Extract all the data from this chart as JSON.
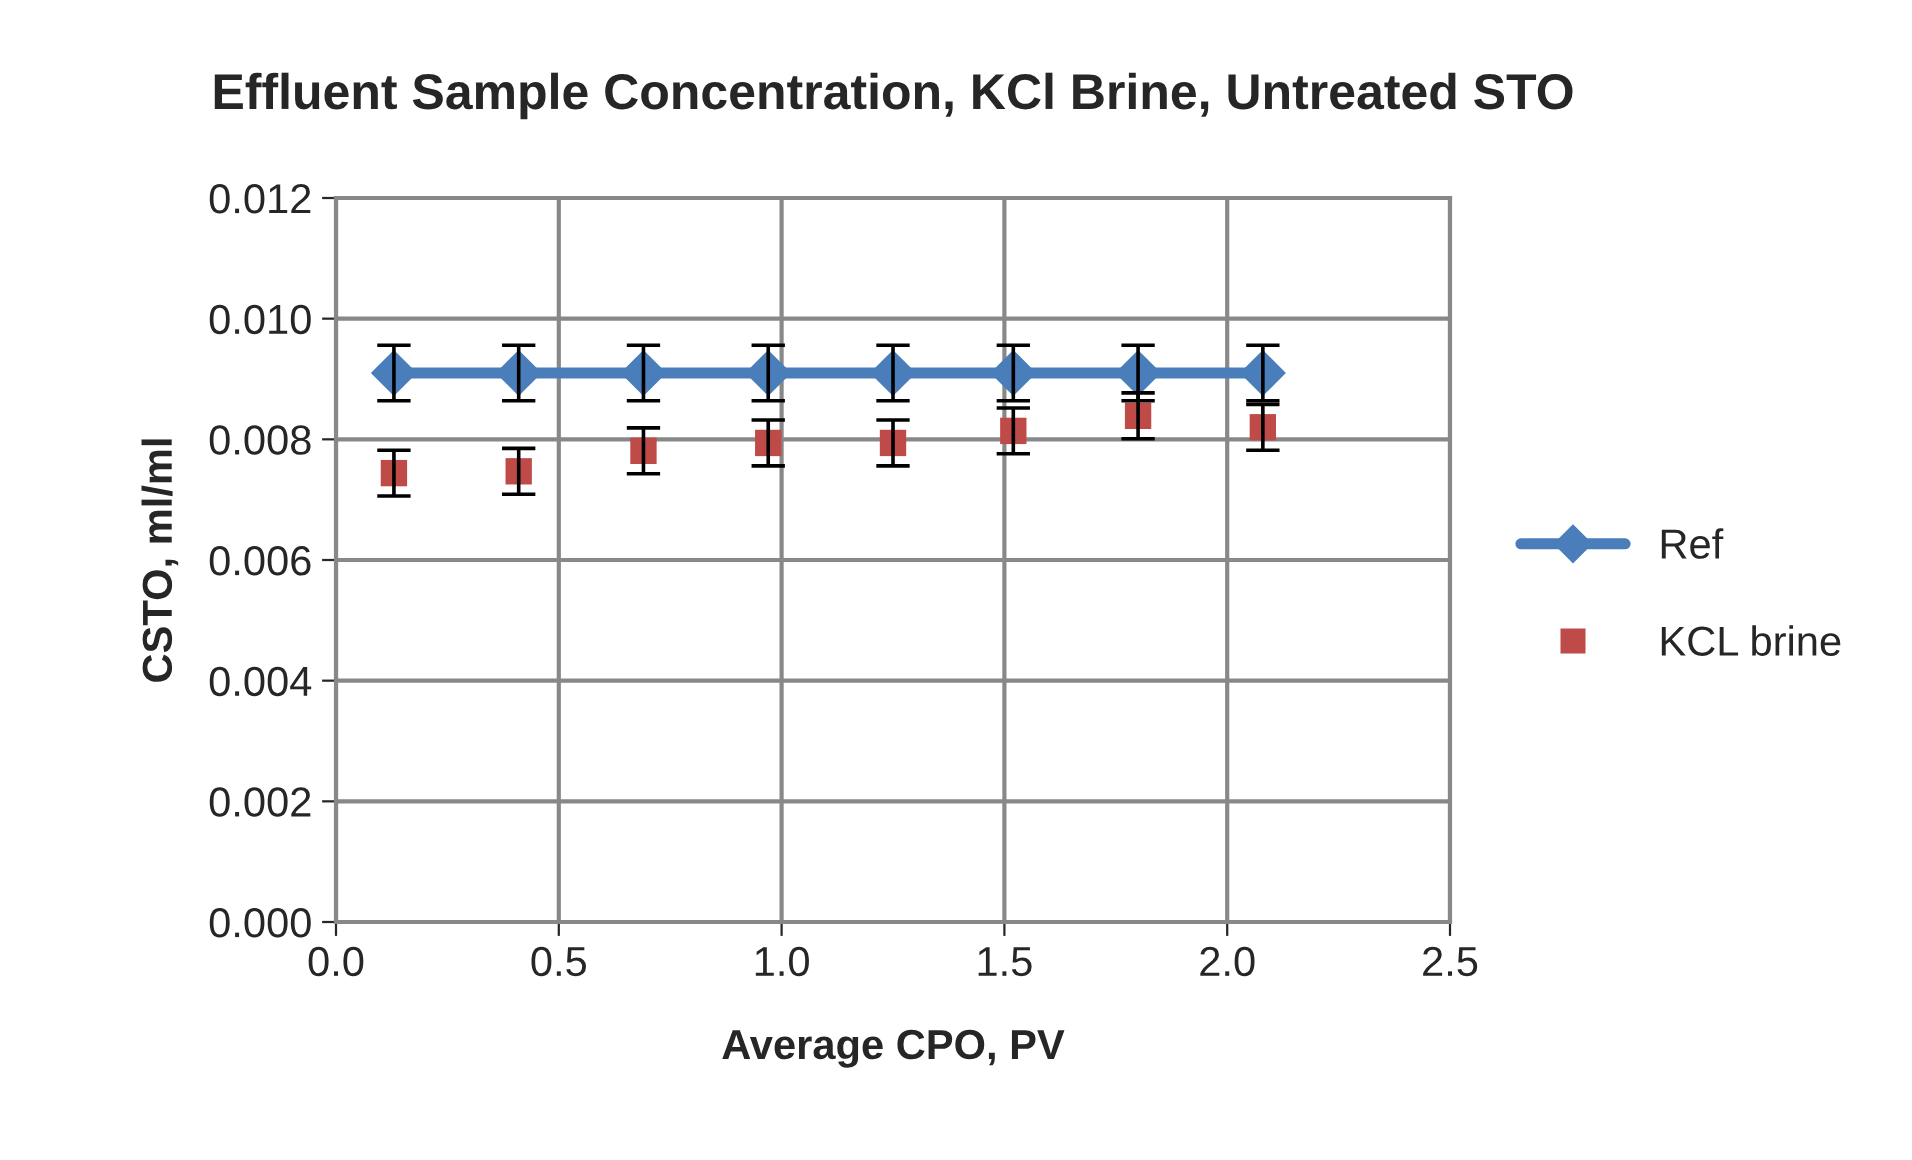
{
  "chart_data": {
    "type": "line",
    "title": "Effluent Sample Concentration, KCl Brine, Untreated STO",
    "xlabel": "Average CPO, PV",
    "ylabel": "CSTO, ml/ml",
    "xlim": [
      0.0,
      2.5
    ],
    "xticks": [
      {
        "value": 0,
        "label": "0.0"
      },
      {
        "value": 0.5,
        "label": "0.5"
      },
      {
        "value": 1,
        "label": "1.0"
      },
      {
        "value": 1.5,
        "label": "1.5"
      },
      {
        "value": 2,
        "label": "2.0"
      },
      {
        "value": 2.5,
        "label": "2.5"
      }
    ],
    "ylim": [
      0,
      0.012
    ],
    "yticks": [
      {
        "value": 0,
        "label": "0.000"
      },
      {
        "value": 0.002,
        "label": "0.002"
      },
      {
        "value": 0.004,
        "label": "0.004"
      },
      {
        "value": 0.006,
        "label": "0.006"
      },
      {
        "value": 0.008,
        "label": "0.008"
      },
      {
        "value": 0.01,
        "label": "0.010"
      },
      {
        "value": 0.012,
        "label": "0.012"
      }
    ],
    "grid": true,
    "legend": "right",
    "series": [
      {
        "name": "Ref",
        "marker": "diamond",
        "color": "#4a7ebb",
        "x": [
          0.13,
          0.41,
          0.69,
          0.97,
          1.25,
          1.52,
          1.8,
          2.08
        ],
        "values": [
          0.0091,
          0.0091,
          0.0091,
          0.0091,
          0.0091,
          0.0091,
          0.0091,
          0.0091
        ],
        "errors": [
          0.00046,
          0.00046,
          0.00046,
          0.00046,
          0.00046,
          0.00046,
          0.00046,
          0.00046
        ]
      },
      {
        "name": "KCL brine",
        "type": "scatter",
        "marker": "square",
        "color": "#be4b48",
        "x": [
          0.13,
          0.41,
          0.69,
          0.97,
          1.25,
          1.52,
          1.8,
          2.08
        ],
        "values": [
          0.00744,
          0.00747,
          0.00781,
          0.00794,
          0.00794,
          0.00814,
          0.00839,
          0.0082
        ],
        "errors": [
          0.00038,
          0.00038,
          0.00038,
          0.00038,
          0.00038,
          0.00038,
          0.00038,
          0.00038
        ]
      }
    ]
  }
}
